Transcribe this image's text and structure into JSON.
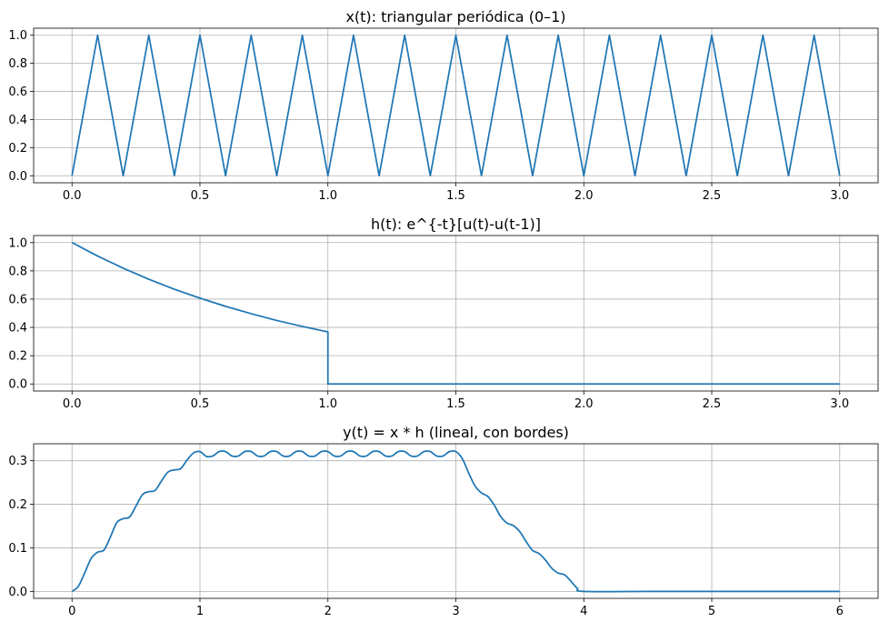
{
  "chart_data": [
    {
      "type": "line",
      "title": "x(t): triangular periódica (0–1)",
      "xlabel": "",
      "ylabel": "",
      "xlim": [
        -0.15,
        3.15
      ],
      "ylim": [
        -0.05,
        1.05
      ],
      "xticks": [
        0.0,
        0.5,
        1.0,
        1.5,
        2.0,
        2.5,
        3.0
      ],
      "xtick_labels": [
        "0.0",
        "0.5",
        "1.0",
        "1.5",
        "2.0",
        "2.5",
        "3.0"
      ],
      "yticks": [
        0.0,
        0.2,
        0.4,
        0.6,
        0.8,
        1.0
      ],
      "ytick_labels": [
        "0.0",
        "0.2",
        "0.4",
        "0.6",
        "0.8",
        "1.0"
      ],
      "grid": true,
      "color": "#1f77b4",
      "series": [
        {
          "x": [
            0.0,
            0.1,
            0.2,
            0.3,
            0.4,
            0.5,
            0.6,
            0.7,
            0.8,
            0.9,
            1.0,
            1.1,
            1.2,
            1.3,
            1.4,
            1.5,
            1.6,
            1.7,
            1.8,
            1.9,
            2.0,
            2.1,
            2.2,
            2.3,
            2.4,
            2.5,
            2.6,
            2.7,
            2.8,
            2.9,
            3.0
          ],
          "y": [
            0,
            1,
            0,
            1,
            0,
            1,
            0,
            1,
            0,
            1,
            0,
            1,
            0,
            1,
            0,
            1,
            0,
            1,
            0,
            1,
            0,
            1,
            0,
            1,
            0,
            1,
            0,
            1,
            0,
            1,
            0
          ]
        }
      ]
    },
    {
      "type": "line",
      "title": "h(t): e^{-t}[u(t)-u(t-1)]",
      "xlabel": "",
      "ylabel": "",
      "xlim": [
        -0.15,
        3.15
      ],
      "ylim": [
        -0.05,
        1.05
      ],
      "xticks": [
        0.0,
        0.5,
        1.0,
        1.5,
        2.0,
        2.5,
        3.0
      ],
      "xtick_labels": [
        "0.0",
        "0.5",
        "1.0",
        "1.5",
        "2.0",
        "2.5",
        "3.0"
      ],
      "yticks": [
        0.0,
        0.2,
        0.4,
        0.6,
        0.8,
        1.0
      ],
      "ytick_labels": [
        "0.0",
        "0.2",
        "0.4",
        "0.6",
        "0.8",
        "1.0"
      ],
      "grid": true,
      "color": "#1f77b4",
      "series": [
        {
          "x": [
            0.0,
            0.1,
            0.2,
            0.3,
            0.4,
            0.5,
            0.6,
            0.7,
            0.8,
            0.9,
            1.0,
            1.0,
            1.5,
            2.0,
            2.5,
            3.0
          ],
          "y": [
            1.0,
            0.905,
            0.819,
            0.741,
            0.67,
            0.607,
            0.549,
            0.497,
            0.449,
            0.407,
            0.368,
            0.0,
            0.0,
            0.0,
            0.0,
            0.0
          ]
        }
      ]
    },
    {
      "type": "line",
      "title": "y(t) = x * h (lineal, con bordes)",
      "xlabel": "",
      "ylabel": "",
      "xlim": [
        -0.3,
        6.3
      ],
      "ylim": [
        -0.016,
        0.339
      ],
      "xticks": [
        0,
        1,
        2,
        3,
        4,
        5,
        6
      ],
      "xtick_labels": [
        "0",
        "1",
        "2",
        "3",
        "4",
        "5",
        "6"
      ],
      "yticks": [
        0.0,
        0.1,
        0.2,
        0.3
      ],
      "ytick_labels": [
        "0.0",
        "0.1",
        "0.2",
        "0.3"
      ],
      "grid": true,
      "color": "#1f77b4",
      "series": [
        {
          "x": [
            0.0,
            0.05,
            0.1,
            0.15,
            0.2,
            0.25,
            0.3,
            0.35,
            0.4,
            0.45,
            0.5,
            0.55,
            0.6,
            0.65,
            0.7,
            0.75,
            0.8,
            0.85,
            0.9,
            0.95,
            1.0,
            1.05,
            1.1,
            1.15,
            1.2,
            1.25,
            1.3,
            1.35,
            1.4,
            1.45,
            1.5,
            1.55,
            1.6,
            1.65,
            1.7,
            1.75,
            1.8,
            1.85,
            1.9,
            1.95,
            2.0,
            2.05,
            2.1,
            2.15,
            2.2,
            2.25,
            2.3,
            2.35,
            2.4,
            2.45,
            2.5,
            2.55,
            2.6,
            2.65,
            2.7,
            2.75,
            2.8,
            2.85,
            2.9,
            2.95,
            3.0,
            3.05,
            3.1,
            3.15,
            3.2,
            3.25,
            3.3,
            3.35,
            3.4,
            3.45,
            3.5,
            3.55,
            3.6,
            3.65,
            3.7,
            3.75,
            3.8,
            3.85,
            3.9,
            3.95,
            4.0,
            4.5,
            5.0,
            5.5,
            6.0
          ],
          "y": [
            0.0,
            0.012,
            0.043,
            0.076,
            0.09,
            0.095,
            0.125,
            0.158,
            0.167,
            0.171,
            0.196,
            0.222,
            0.229,
            0.232,
            0.254,
            0.274,
            0.279,
            0.282,
            0.302,
            0.318,
            0.321,
            0.31,
            0.311,
            0.321,
            0.321,
            0.311,
            0.311,
            0.321,
            0.321,
            0.311,
            0.311,
            0.321,
            0.321,
            0.311,
            0.311,
            0.321,
            0.321,
            0.311,
            0.311,
            0.321,
            0.321,
            0.311,
            0.311,
            0.321,
            0.321,
            0.311,
            0.311,
            0.321,
            0.321,
            0.311,
            0.311,
            0.321,
            0.321,
            0.311,
            0.311,
            0.321,
            0.321,
            0.311,
            0.311,
            0.321,
            0.321,
            0.305,
            0.272,
            0.242,
            0.226,
            0.218,
            0.198,
            0.172,
            0.157,
            0.151,
            0.137,
            0.114,
            0.094,
            0.087,
            0.072,
            0.053,
            0.042,
            0.038,
            0.023,
            0.007,
            0.0,
            0.0,
            0.0,
            0.0,
            0.0
          ]
        }
      ]
    }
  ]
}
